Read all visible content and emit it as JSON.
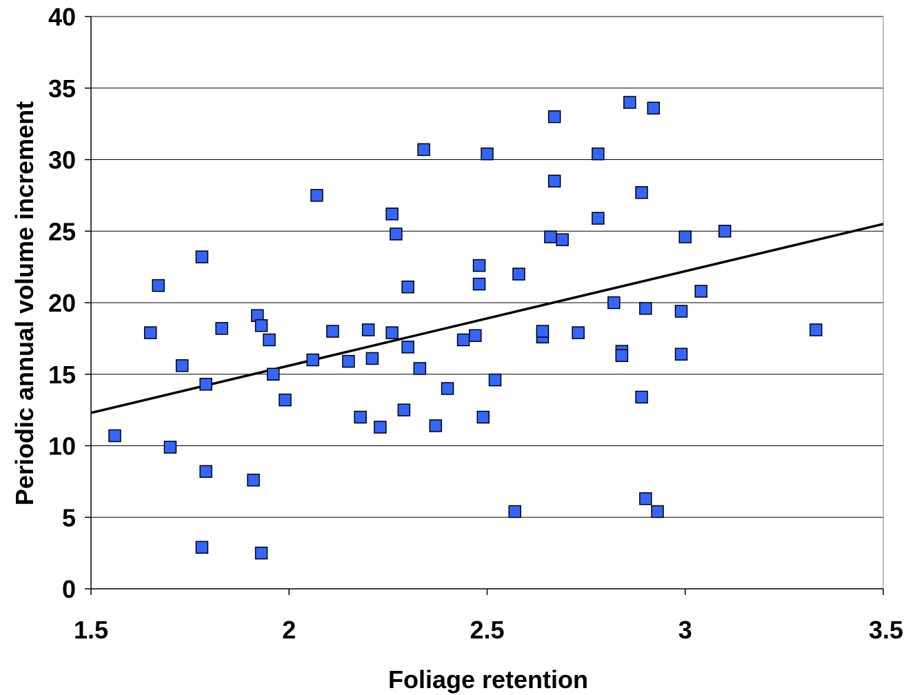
{
  "chart_data": {
    "type": "scatter",
    "title": "",
    "xlabel": "Foliage retention",
    "ylabel": "Periodic annual volume increment",
    "xlim": [
      1.5,
      3.5
    ],
    "ylim": [
      0,
      40
    ],
    "x_ticks": [
      "1.5",
      "2",
      "2.5",
      "3",
      "3.5"
    ],
    "x_tick_values": [
      1.5,
      2,
      2.5,
      3,
      3.5
    ],
    "y_ticks": [
      "0",
      "5",
      "10",
      "15",
      "20",
      "25",
      "30",
      "35",
      "40"
    ],
    "y_tick_values": [
      0,
      5,
      10,
      15,
      20,
      25,
      30,
      35,
      40
    ],
    "grid": "horizontal",
    "legend": "none",
    "marker_color": "#3366FF",
    "marker_edge_color": "#000000",
    "trendline": {
      "x": [
        1.5,
        3.5
      ],
      "y": [
        12.3,
        25.5
      ],
      "color": "#000000"
    },
    "points": [
      [
        1.56,
        10.7
      ],
      [
        1.65,
        17.9
      ],
      [
        1.67,
        21.2
      ],
      [
        1.7,
        9.9
      ],
      [
        1.73,
        15.6
      ],
      [
        1.78,
        23.2
      ],
      [
        1.78,
        2.9
      ],
      [
        1.79,
        14.3
      ],
      [
        1.79,
        8.2
      ],
      [
        1.83,
        18.2
      ],
      [
        1.91,
        7.6
      ],
      [
        1.92,
        19.1
      ],
      [
        1.93,
        18.4
      ],
      [
        1.93,
        2.5
      ],
      [
        1.95,
        17.4
      ],
      [
        1.96,
        15.0
      ],
      [
        1.99,
        13.2
      ],
      [
        2.06,
        16.0
      ],
      [
        2.07,
        27.5
      ],
      [
        2.11,
        18.0
      ],
      [
        2.15,
        15.9
      ],
      [
        2.18,
        12.0
      ],
      [
        2.2,
        18.1
      ],
      [
        2.21,
        16.1
      ],
      [
        2.23,
        11.3
      ],
      [
        2.26,
        26.2
      ],
      [
        2.26,
        17.9
      ],
      [
        2.27,
        24.8
      ],
      [
        2.29,
        12.5
      ],
      [
        2.3,
        21.1
      ],
      [
        2.3,
        16.9
      ],
      [
        2.33,
        15.4
      ],
      [
        2.34,
        30.7
      ],
      [
        2.37,
        11.4
      ],
      [
        2.4,
        14.0
      ],
      [
        2.44,
        17.4
      ],
      [
        2.47,
        17.7
      ],
      [
        2.48,
        22.6
      ],
      [
        2.48,
        21.3
      ],
      [
        2.49,
        12.0
      ],
      [
        2.5,
        30.4
      ],
      [
        2.52,
        14.6
      ],
      [
        2.57,
        5.4
      ],
      [
        2.58,
        22.0
      ],
      [
        2.64,
        17.6
      ],
      [
        2.64,
        18.0
      ],
      [
        2.66,
        24.6
      ],
      [
        2.67,
        33.0
      ],
      [
        2.67,
        28.5
      ],
      [
        2.69,
        24.4
      ],
      [
        2.73,
        17.9
      ],
      [
        2.78,
        30.4
      ],
      [
        2.78,
        25.9
      ],
      [
        2.82,
        20.0
      ],
      [
        2.84,
        16.6
      ],
      [
        2.84,
        16.3
      ],
      [
        2.86,
        34.0
      ],
      [
        2.89,
        27.7
      ],
      [
        2.89,
        13.4
      ],
      [
        2.9,
        19.6
      ],
      [
        2.9,
        6.3
      ],
      [
        2.92,
        33.6
      ],
      [
        2.93,
        5.4
      ],
      [
        2.99,
        19.4
      ],
      [
        2.99,
        16.4
      ],
      [
        3.0,
        24.6
      ],
      [
        3.04,
        20.8
      ],
      [
        3.1,
        25.0
      ],
      [
        3.33,
        18.1
      ]
    ]
  }
}
